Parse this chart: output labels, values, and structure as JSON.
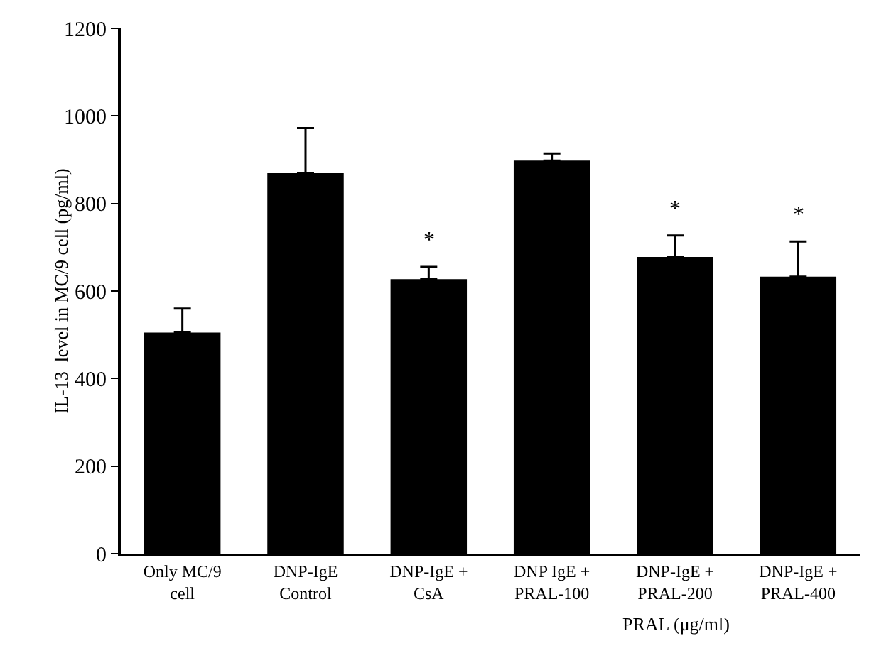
{
  "chart_data": {
    "type": "bar",
    "ylabel": "IL-13  level in MC/9 cell (pg/ml)",
    "xlabel": "PRAL (μg/ml)",
    "categories": [
      "Only MC/9\ncell",
      "DNP-IgE\nControl",
      "DNP-IgE +\nCsA",
      "DNP IgE +\nPRAL-100",
      "DNP-IgE +\nPRAL-200",
      "DNP-IgE +\nPRAL-400"
    ],
    "values": [
      505,
      869,
      627,
      898,
      678,
      633
    ],
    "errors": [
      [
        505,
        560
      ],
      [
        869,
        972
      ],
      [
        627,
        655
      ],
      [
        898,
        914
      ],
      [
        678,
        727
      ],
      [
        633,
        713
      ]
    ],
    "color": "#000000",
    "ylim": [
      0,
      1200
    ],
    "yticks": [
      0,
      200,
      400,
      600,
      800,
      1000,
      1200
    ],
    "grid": false,
    "annotations": [
      {
        "text": "*",
        "x": "DNP-IgE +\nCsA",
        "y": 655
      },
      {
        "text": "*",
        "x": "DNP-IgE +\nPRAL-200",
        "y": 727
      },
      {
        "text": "*",
        "x": "DNP-IgE +\nPRAL-400",
        "y": 713
      }
    ]
  }
}
